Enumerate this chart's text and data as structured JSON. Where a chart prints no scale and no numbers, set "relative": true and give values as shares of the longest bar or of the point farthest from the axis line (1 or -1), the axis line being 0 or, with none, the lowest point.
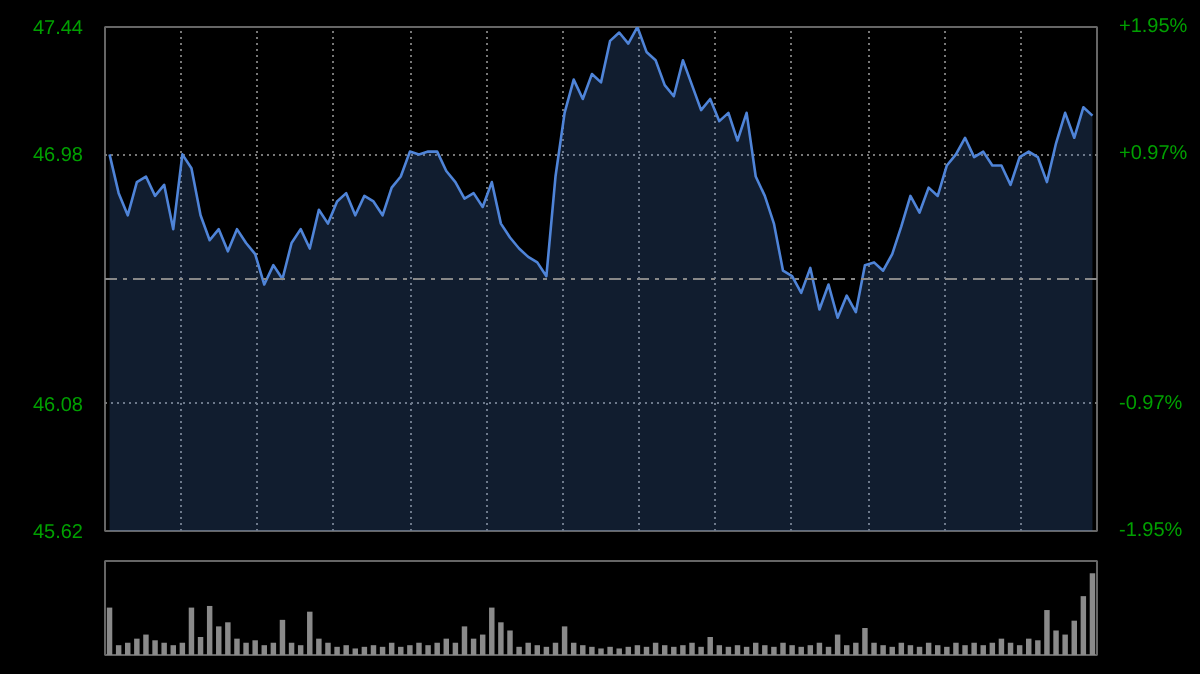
{
  "chart_data": [
    {
      "type": "area",
      "categories": [
        null,
        null,
        null,
        null,
        null,
        null,
        null,
        null,
        null,
        null,
        null,
        null,
        null,
        null,
        null,
        null,
        null,
        null,
        null,
        null,
        null,
        null,
        null,
        null,
        null,
        null,
        null,
        null,
        null,
        null,
        null,
        null,
        null,
        null,
        null,
        null,
        null,
        null,
        null,
        null,
        null,
        null,
        null,
        null,
        null,
        null,
        null,
        null,
        null,
        null,
        null,
        null,
        null,
        null,
        null,
        null,
        null,
        null,
        null,
        null,
        null,
        null,
        null,
        null,
        null,
        null,
        null,
        null,
        null,
        null,
        null,
        null,
        null,
        null,
        null,
        null,
        null,
        null,
        null,
        null,
        null,
        null,
        null,
        null,
        null,
        null,
        null,
        null,
        null,
        null,
        null,
        null,
        null,
        null,
        null,
        null,
        null,
        null,
        null,
        null,
        null,
        null,
        null,
        null,
        null,
        null,
        null,
        null,
        null
      ],
      "series": [
        {
          "color": "#4f84d8",
          "values": [
            46.98,
            46.84,
            46.76,
            46.88,
            46.9,
            46.83,
            46.87,
            46.71,
            46.98,
            46.93,
            46.76,
            46.67,
            46.71,
            46.63,
            46.71,
            46.66,
            46.62,
            46.51,
            46.58,
            46.53,
            46.66,
            46.71,
            46.64,
            46.78,
            46.73,
            46.81,
            46.84,
            46.76,
            46.83,
            46.81,
            46.76,
            46.86,
            46.9,
            46.99,
            46.98,
            46.99,
            46.99,
            46.92,
            46.88,
            46.82,
            46.84,
            46.79,
            46.88,
            46.73,
            46.68,
            46.64,
            46.61,
            46.59,
            46.54,
            46.9,
            47.13,
            47.25,
            47.18,
            47.27,
            47.24,
            47.39,
            47.42,
            47.38,
            47.44,
            47.35,
            47.32,
            47.23,
            47.19,
            47.32,
            47.23,
            47.14,
            47.18,
            47.1,
            47.13,
            47.03,
            47.13,
            46.9,
            46.83,
            46.73,
            46.56,
            46.54,
            46.48,
            46.57,
            46.42,
            46.51,
            46.39,
            46.47,
            46.41,
            46.58,
            46.59,
            46.56,
            46.62,
            46.72,
            46.83,
            46.77,
            46.86,
            46.83,
            46.94,
            46.98,
            47.04,
            46.97,
            46.99,
            46.94,
            46.94,
            46.87,
            46.97,
            46.99,
            46.97,
            46.88,
            47.02,
            47.13,
            47.04,
            47.15,
            47.12
          ]
        }
      ],
      "ylim": [
        45.62,
        47.44
      ],
      "yticks": [
        45.62,
        46.08,
        46.98,
        47.44
      ],
      "y2lim": [
        -1.95,
        1.95
      ],
      "y2ticks": [
        {
          "value": -1.95,
          "label": "-1.95%"
        },
        {
          "value": -0.97,
          "label": "-0.97%"
        },
        {
          "value": 0.97,
          "label": "+0.97%"
        },
        {
          "value": 1.95,
          "label": "+1.95%"
        }
      ],
      "ref_lines": [
        {
          "axis": "y",
          "value": 46.53,
          "label": null,
          "line_style": "dashed"
        }
      ],
      "grid": true,
      "tick_labels": "y"
    },
    {
      "type": "bar",
      "relative": true,
      "tick_labels": false,
      "categories": [
        null,
        null,
        null,
        null,
        null,
        null,
        null,
        null,
        null,
        null,
        null,
        null,
        null,
        null,
        null,
        null,
        null,
        null,
        null,
        null,
        null,
        null,
        null,
        null,
        null,
        null,
        null,
        null,
        null,
        null,
        null,
        null,
        null,
        null,
        null,
        null,
        null,
        null,
        null,
        null,
        null,
        null,
        null,
        null,
        null,
        null,
        null,
        null,
        null,
        null,
        null,
        null,
        null,
        null,
        null,
        null,
        null,
        null,
        null,
        null,
        null,
        null,
        null,
        null,
        null,
        null,
        null,
        null,
        null,
        null,
        null,
        null,
        null,
        null,
        null,
        null,
        null,
        null,
        null,
        null,
        null,
        null,
        null,
        null,
        null,
        null,
        null,
        null,
        null,
        null,
        null,
        null,
        null,
        null,
        null,
        null,
        null,
        null,
        null,
        null,
        null,
        null,
        null,
        null,
        null,
        null,
        null,
        null,
        null
      ],
      "series": [
        {
          "color": "#8a8a8a",
          "values": [
            0.58,
            0.12,
            0.15,
            0.2,
            0.25,
            0.18,
            0.15,
            0.12,
            0.15,
            0.58,
            0.22,
            0.6,
            0.35,
            0.4,
            0.2,
            0.15,
            0.18,
            0.12,
            0.15,
            0.43,
            0.15,
            0.12,
            0.53,
            0.2,
            0.15,
            0.1,
            0.12,
            0.08,
            0.1,
            0.12,
            0.1,
            0.15,
            0.1,
            0.12,
            0.15,
            0.12,
            0.15,
            0.2,
            0.15,
            0.35,
            0.2,
            0.25,
            0.58,
            0.4,
            0.3,
            0.1,
            0.15,
            0.12,
            0.1,
            0.15,
            0.35,
            0.15,
            0.12,
            0.1,
            0.08,
            0.1,
            0.08,
            0.1,
            0.12,
            0.1,
            0.15,
            0.12,
            0.1,
            0.12,
            0.15,
            0.1,
            0.22,
            0.12,
            0.1,
            0.12,
            0.1,
            0.15,
            0.12,
            0.1,
            0.15,
            0.12,
            0.1,
            0.12,
            0.15,
            0.1,
            0.25,
            0.12,
            0.15,
            0.33,
            0.15,
            0.12,
            0.1,
            0.15,
            0.12,
            0.1,
            0.15,
            0.12,
            0.1,
            0.15,
            0.12,
            0.15,
            0.12,
            0.15,
            0.2,
            0.15,
            0.12,
            0.2,
            0.18,
            0.55,
            0.3,
            0.25,
            0.42,
            0.72,
            1.0
          ]
        }
      ]
    }
  ]
}
